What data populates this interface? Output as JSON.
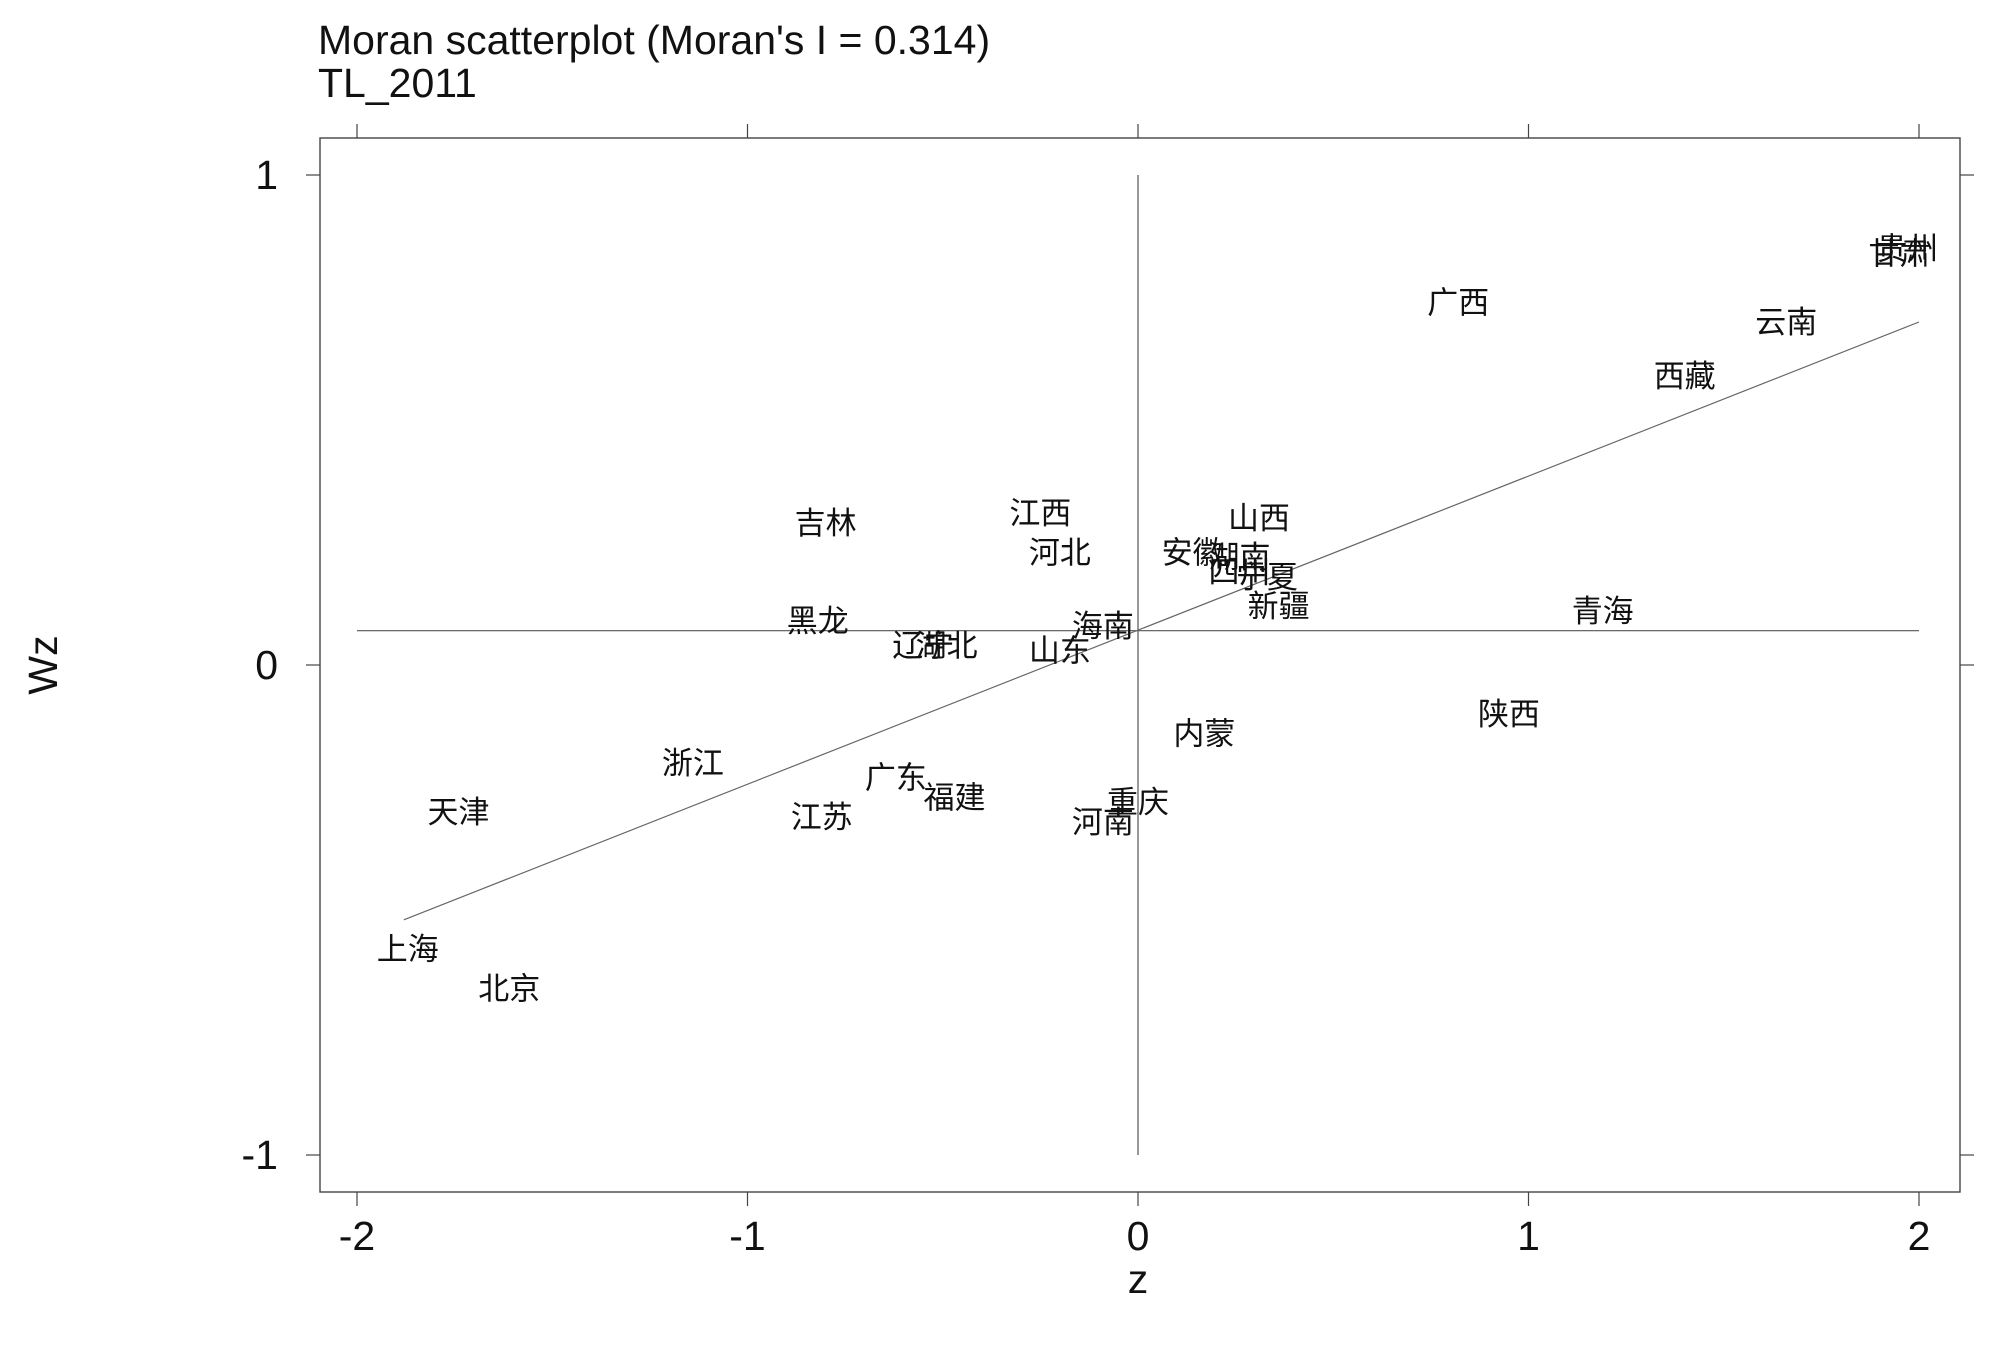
{
  "chart_data": {
    "type": "scatter",
    "title": "Moran scatterplot (Moran's I = 0.314)",
    "subtitle": "TL_2011",
    "xlabel": "z",
    "ylabel": "Wz",
    "xlim": [
      -2.1,
      2.1
    ],
    "ylim": [
      -1.07,
      1.0
    ],
    "x_ticks": [
      -2,
      -1,
      0,
      1,
      2
    ],
    "x_tick_labels": [
      "-2",
      "-1",
      "0",
      "1",
      "2"
    ],
    "y_ticks": [
      -1,
      0,
      1
    ],
    "y_tick_labels": [
      "-1",
      "0",
      "1"
    ],
    "grid": false,
    "markers": "labels",
    "reference_lines": {
      "x": 0.0,
      "y": 0.07
    },
    "fit_line": {
      "x": [
        -1.88,
        2.0
      ],
      "y": [
        -0.52,
        0.7
      ]
    },
    "points": [
      {
        "label": "贵州",
        "x": 1.97,
        "y": 0.85
      },
      {
        "label": "甘肃",
        "x": 1.95,
        "y": 0.84
      },
      {
        "label": "广西",
        "x": 0.82,
        "y": 0.74
      },
      {
        "label": "云南",
        "x": 1.66,
        "y": 0.7
      },
      {
        "label": "西藏",
        "x": 1.4,
        "y": 0.59
      },
      {
        "label": "吉林",
        "x": -0.8,
        "y": 0.29
      },
      {
        "label": "江西",
        "x": -0.25,
        "y": 0.31
      },
      {
        "label": "河北",
        "x": -0.2,
        "y": 0.23
      },
      {
        "label": "山西",
        "x": 0.31,
        "y": 0.3
      },
      {
        "label": "安徽",
        "x": 0.14,
        "y": 0.23
      },
      {
        "label": "湖南",
        "x": 0.26,
        "y": 0.22
      },
      {
        "label": "四川",
        "x": 0.26,
        "y": 0.19
      },
      {
        "label": "宁夏",
        "x": 0.33,
        "y": 0.18
      },
      {
        "label": "新疆",
        "x": 0.36,
        "y": 0.12
      },
      {
        "label": "青海",
        "x": 1.19,
        "y": 0.11
      },
      {
        "label": "黑龙",
        "x": -0.82,
        "y": 0.09
      },
      {
        "label": "海南",
        "x": -0.09,
        "y": 0.08
      },
      {
        "label": "辽宁",
        "x": -0.55,
        "y": 0.04
      },
      {
        "label": "湖北",
        "x": -0.49,
        "y": 0.04
      },
      {
        "label": "山东",
        "x": -0.2,
        "y": 0.03
      },
      {
        "label": "陕西",
        "x": 0.95,
        "y": -0.1
      },
      {
        "label": "内蒙",
        "x": 0.17,
        "y": -0.14
      },
      {
        "label": "浙江",
        "x": -1.14,
        "y": -0.2
      },
      {
        "label": "广东",
        "x": -0.62,
        "y": -0.23
      },
      {
        "label": "福建",
        "x": -0.47,
        "y": -0.27
      },
      {
        "label": "天津",
        "x": -1.74,
        "y": -0.3
      },
      {
        "label": "江苏",
        "x": -0.81,
        "y": -0.31
      },
      {
        "label": "重庆",
        "x": 0.0,
        "y": -0.28
      },
      {
        "label": "河南",
        "x": -0.09,
        "y": -0.32
      },
      {
        "label": "上海",
        "x": -1.87,
        "y": -0.58
      },
      {
        "label": "北京",
        "x": -1.61,
        "y": -0.66
      }
    ]
  }
}
